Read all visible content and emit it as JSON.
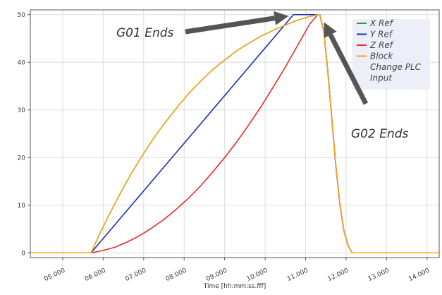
{
  "chart_data": {
    "type": "line",
    "xlabel": "Time [hh:mm:ss.fff]",
    "ylabel": "",
    "x_tick_labels": [
      "05.000",
      "06.000",
      "07.000",
      "08.000",
      "09.000",
      "10.000",
      "11.000",
      "12.000",
      "13.000",
      "14.000"
    ],
    "y_ticks": [
      0,
      10,
      20,
      30,
      40,
      50
    ],
    "xlim": [
      4.2,
      14.3
    ],
    "ylim": [
      -1,
      51
    ],
    "grid": true,
    "legend_position": "top-right",
    "series": [
      {
        "name": "X Ref",
        "color": "#2e9e3a",
        "x": [
          4.2,
          5.7,
          5.9,
          6.1,
          6.3,
          6.5,
          6.7,
          6.9,
          7.1,
          7.3,
          7.5,
          7.7,
          7.9,
          8.1,
          8.3,
          8.5,
          8.7,
          8.9,
          9.1,
          9.3,
          9.5,
          9.7,
          9.9,
          10.1,
          10.3,
          10.5,
          10.7,
          10.9,
          11.1,
          11.3,
          11.35,
          11.45,
          11.55,
          11.65,
          11.75,
          11.85,
          11.95,
          12.05,
          12.15,
          14.3
        ],
        "y": [
          0,
          0,
          3.7,
          7.2,
          10.5,
          13.7,
          16.7,
          19.5,
          22.2,
          24.7,
          27.0,
          29.2,
          31.3,
          33.3,
          35.1,
          36.8,
          38.4,
          39.8,
          41.1,
          42.4,
          43.5,
          44.5,
          45.5,
          46.3,
          47.1,
          47.8,
          48.5,
          49.1,
          49.6,
          50,
          50,
          46.5,
          38,
          28,
          18,
          10,
          4.5,
          1.5,
          0,
          0
        ]
      },
      {
        "name": "Y Ref",
        "color": "#1b2fb5",
        "x": [
          4.2,
          5.7,
          10.7,
          11.3,
          11.35,
          11.45,
          11.55,
          11.65,
          11.75,
          11.85,
          11.95,
          12.05,
          12.15,
          14.3
        ],
        "y": [
          0,
          0,
          50,
          50,
          50,
          46.5,
          38,
          28,
          18,
          10,
          4.5,
          1.5,
          0,
          0
        ]
      },
      {
        "name": "Z Ref",
        "color": "#e52a2a",
        "x": [
          4.2,
          5.7,
          6.0,
          6.3,
          6.6,
          6.9,
          7.2,
          7.5,
          7.8,
          8.1,
          8.4,
          8.7,
          9.0,
          9.3,
          9.6,
          9.9,
          10.2,
          10.5,
          10.8,
          11.1,
          11.3,
          11.35,
          11.45,
          11.55,
          11.65,
          11.75,
          11.85,
          11.95,
          12.05,
          12.15,
          14.3
        ],
        "y": [
          0,
          0,
          0.5,
          1.2,
          2.3,
          3.6,
          5.2,
          7.0,
          9.1,
          11.4,
          14.0,
          16.9,
          20.0,
          23.3,
          26.9,
          30.7,
          34.8,
          39.0,
          43.5,
          48.0,
          50,
          50,
          46.5,
          38,
          28,
          18,
          10,
          4.5,
          1.5,
          0,
          0
        ]
      },
      {
        "name": "Block Change PLC Input",
        "color": "#f5a623",
        "x": [
          4.2,
          5.7,
          5.9,
          6.1,
          6.3,
          6.5,
          6.7,
          6.9,
          7.1,
          7.3,
          7.5,
          7.7,
          7.9,
          8.1,
          8.3,
          8.5,
          8.7,
          8.9,
          9.1,
          9.3,
          9.5,
          9.7,
          9.9,
          10.1,
          10.3,
          10.5,
          10.7,
          10.9,
          11.1,
          11.3,
          11.35,
          11.45,
          11.55,
          11.65,
          11.75,
          11.85,
          11.95,
          12.05,
          12.15,
          14.3
        ],
        "y": [
          0,
          0,
          3.7,
          7.2,
          10.5,
          13.7,
          16.7,
          19.5,
          22.2,
          24.7,
          27.0,
          29.2,
          31.3,
          33.3,
          35.1,
          36.8,
          38.4,
          39.8,
          41.1,
          42.4,
          43.5,
          44.5,
          45.5,
          46.3,
          47.1,
          47.8,
          48.5,
          49.1,
          49.6,
          50,
          50,
          46.5,
          38,
          28,
          18,
          10,
          4.5,
          1.5,
          0,
          0
        ]
      }
    ],
    "legend_lines": [
      {
        "text": "X Ref",
        "color": "#2e9e3a",
        "swatch": true
      },
      {
        "text": "Y Ref",
        "color": "#1b2fb5",
        "swatch": true
      },
      {
        "text": "Z Ref",
        "color": "#e52a2a",
        "swatch": true
      },
      {
        "text": "Block",
        "color": "#f5a623",
        "swatch": true
      },
      {
        "text": "Change PLC",
        "color": "#f5a623",
        "swatch": false
      },
      {
        "text": "Input",
        "color": "#f5a623",
        "swatch": false
      }
    ],
    "annotations": [
      {
        "text": "G01 Ends",
        "target_x": 10.65,
        "target_y": 50
      },
      {
        "text": "G02 Ends",
        "target_x": 11.35,
        "target_y": 49
      }
    ]
  }
}
